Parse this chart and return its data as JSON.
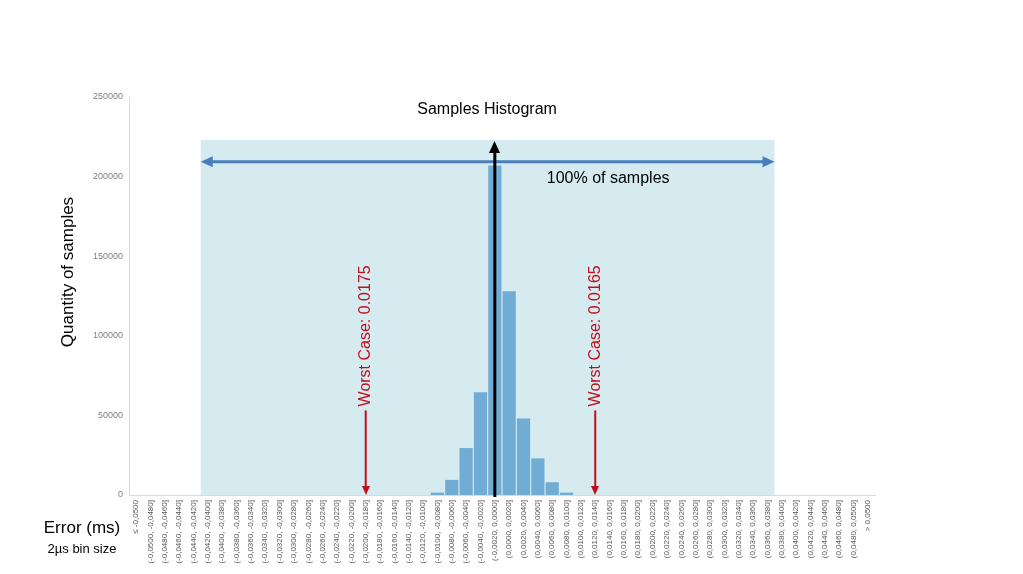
{
  "chart_data": {
    "type": "bar",
    "title": "Samples Histogram",
    "xlabel": "Error (ms)",
    "ylabel": "Quantity of samples",
    "categories": [
      "≤ -0,0500",
      "(-0,0500, -0,0480]",
      "(-0,0480, -0,0460]",
      "(-0,0460, -0,0440]",
      "(-0,0440, -0,0420]",
      "(-0,0420, -0,0400]",
      "(-0,0400, -0,0380]",
      "(-0,0380, -0,0360]",
      "(-0,0360, -0,0340]",
      "(-0,0340, -0,0320]",
      "(-0,0320, -0,0300]",
      "(-0,0300, -0,0280]",
      "(-0,0280, -0,0260]",
      "(-0,0260, -0,0240]",
      "(-0,0240, -0,0220]",
      "(-0,0220, -0,0200]",
      "(-0,0200, -0,0180]",
      "(-0,0180, -0,0160]",
      "(-0,0160, -0,0140]",
      "(-0,0140, -0,0120]",
      "(-0,0120, -0,0100]",
      "(-0,0100, -0,0080]",
      "(-0,0080, -0,0060]",
      "(-0,0060, -0,0040]",
      "(-0,0040, -0,0020]",
      "(-0,0020, 0,0000]",
      "(0,0000, 0,0020]",
      "(0,0020, 0,0040]",
      "(0,0040, 0,0060]",
      "(0,0060, 0,0080]",
      "(0,0080, 0,0100]",
      "(0,0100, 0,0120]",
      "(0,0120, 0,0140]",
      "(0,0140, 0,0160]",
      "(0,0160, 0,0180]",
      "(0,0180, 0,0200]",
      "(0,0200, 0,0220]",
      "(0,0220, 0,0240]",
      "(0,0240, 0,0260]",
      "(0,0260, 0,0280]",
      "(0,0280, 0,0300]",
      "(0,0300, 0,0320]",
      "(0,0320, 0,0340]",
      "(0,0340, 0,0360]",
      "(0,0360, 0,0380]",
      "(0,0380, 0,0400]",
      "(0,0400, 0,0420]",
      "(0,0420, 0,0440]",
      "(0,0440, 0,0460]",
      "(0,0460, 0,0480]",
      "(0,0480, 0,0500]",
      "> 0,0500"
    ],
    "values": [
      0,
      0,
      0,
      0,
      0,
      0,
      0,
      0,
      0,
      0,
      0,
      0,
      0,
      0,
      0,
      0,
      0,
      0,
      0,
      0,
      0,
      1500,
      9500,
      29500,
      64500,
      207000,
      128000,
      48000,
      23000,
      8000,
      1500,
      0,
      0,
      0,
      0,
      0,
      0,
      0,
      0,
      0,
      0,
      0,
      0,
      0,
      0,
      0,
      0,
      0,
      0,
      0,
      0,
      0
    ],
    "color": "#71acd4",
    "ylim": [
      0,
      250000
    ],
    "yticks": [
      0,
      50000,
      100000,
      150000,
      200000,
      250000
    ],
    "bands": [
      {
        "axis": "x",
        "from": "(-0,0420, -0,0400]",
        "to": "(0,0360, 0,0380]",
        "label": "100% of samples",
        "color": "#d6ebf0"
      }
    ],
    "ref_lines": [
      {
        "axis": "x",
        "value": "(-0,0020, 0,0000]",
        "color": "#000000"
      }
    ],
    "annotations": [
      "2µs bin size",
      {
        "text": "Worst Case: 0.0175",
        "x": "(-0,0200, -0,0180]"
      },
      {
        "text": "Worst Case: 0.0165",
        "x": "(0,0120, 0,0140]"
      }
    ]
  }
}
